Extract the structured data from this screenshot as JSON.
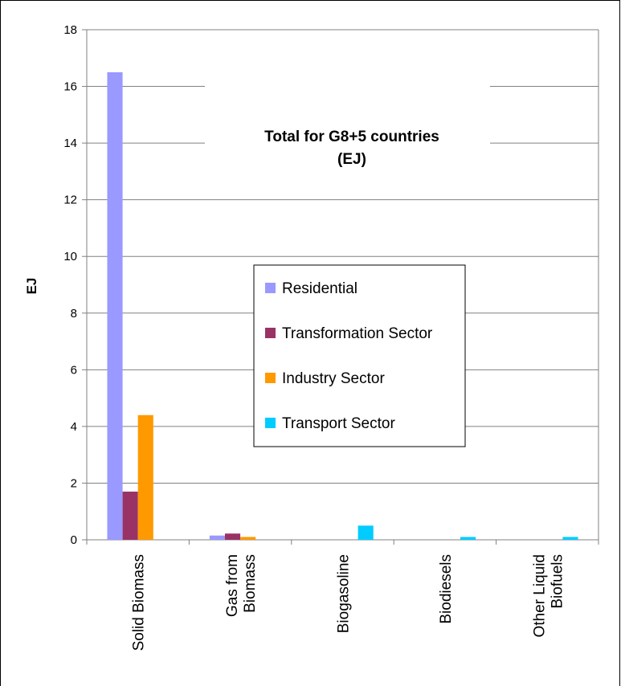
{
  "chart_data": {
    "type": "bar",
    "title": [
      "Total for G8+5 countries",
      "(EJ)"
    ],
    "xlabel": "",
    "ylabel": "EJ",
    "ylim": [
      0,
      18
    ],
    "yticks": [
      0,
      2,
      4,
      6,
      8,
      10,
      12,
      14,
      16,
      18
    ],
    "grid": true,
    "legend_position": "center",
    "categories": [
      [
        "Solid Biomass"
      ],
      [
        "Gas from",
        "Biomass"
      ],
      [
        "Biogasoline"
      ],
      [
        "Biodiesels"
      ],
      [
        "Other Liquid",
        "Biofuels"
      ]
    ],
    "series": [
      {
        "name": "Residential",
        "color": "#9999ff",
        "values": [
          16.5,
          0.15,
          0,
          0,
          0
        ]
      },
      {
        "name": "Transformation Sector",
        "color": "#993366",
        "values": [
          1.7,
          0.22,
          0,
          0,
          0
        ]
      },
      {
        "name": "Industry Sector",
        "color": "#ff9900",
        "values": [
          4.4,
          0.1,
          0,
          0,
          0
        ]
      },
      {
        "name": "Transport Sector",
        "color": "#00ccff",
        "values": [
          0,
          0,
          0.5,
          0.1,
          0.1
        ]
      }
    ]
  }
}
